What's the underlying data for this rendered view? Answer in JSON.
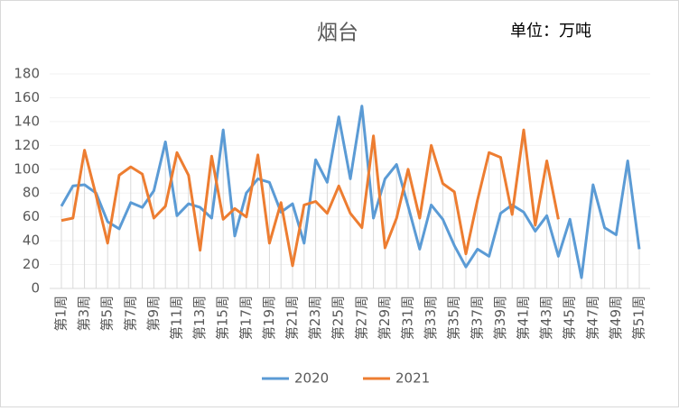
{
  "chart_data": {
    "type": "line",
    "title": "烟台",
    "annotation": "单位：万吨",
    "categories": [
      "第1周",
      null,
      "第3周",
      null,
      "第5周",
      null,
      "第7周",
      null,
      "第9周",
      null,
      "第11周",
      null,
      "第13周",
      null,
      "第15周",
      null,
      "第17周",
      null,
      "第19周",
      null,
      "第21周",
      null,
      "第23周",
      null,
      "第25周",
      null,
      "第27周",
      null,
      "第29周",
      null,
      "第31周",
      null,
      "第33周",
      null,
      "第35周",
      null,
      "第37周",
      null,
      "第39周",
      null,
      "第41周",
      null,
      "第43周",
      null,
      "第45周",
      null,
      "第47周",
      null,
      "第49周",
      null,
      "第51周"
    ],
    "series": [
      {
        "name": "2020",
        "color": "#5b9bd5",
        "values": [
          69,
          86,
          87,
          80,
          56,
          50,
          72,
          68,
          82,
          123,
          61,
          71,
          68,
          59,
          133,
          44,
          80,
          92,
          89,
          64,
          71,
          38,
          108,
          89,
          144,
          92,
          153,
          59,
          92,
          104,
          69,
          33,
          70,
          58,
          36,
          18,
          33,
          27,
          63,
          70,
          64,
          48,
          61,
          27,
          58,
          9,
          87,
          51,
          45,
          107,
          33
        ]
      },
      {
        "name": "2021",
        "color": "#ed7d31",
        "values": [
          57,
          59,
          116,
          78,
          38,
          95,
          102,
          96,
          59,
          69,
          114,
          95,
          32,
          111,
          58,
          67,
          60,
          112,
          38,
          72,
          19,
          70,
          73,
          63,
          86,
          63,
          51,
          128,
          34,
          59,
          100,
          59,
          120,
          88,
          81,
          29,
          74,
          114,
          110,
          62,
          133,
          53,
          107,
          58,
          null,
          null,
          null,
          null,
          null,
          null,
          null
        ]
      }
    ],
    "ylim": [
      0,
      180
    ],
    "yticks": [
      0,
      20,
      40,
      60,
      80,
      100,
      120,
      140,
      160,
      180
    ],
    "grid": true,
    "legend": "bottom"
  }
}
